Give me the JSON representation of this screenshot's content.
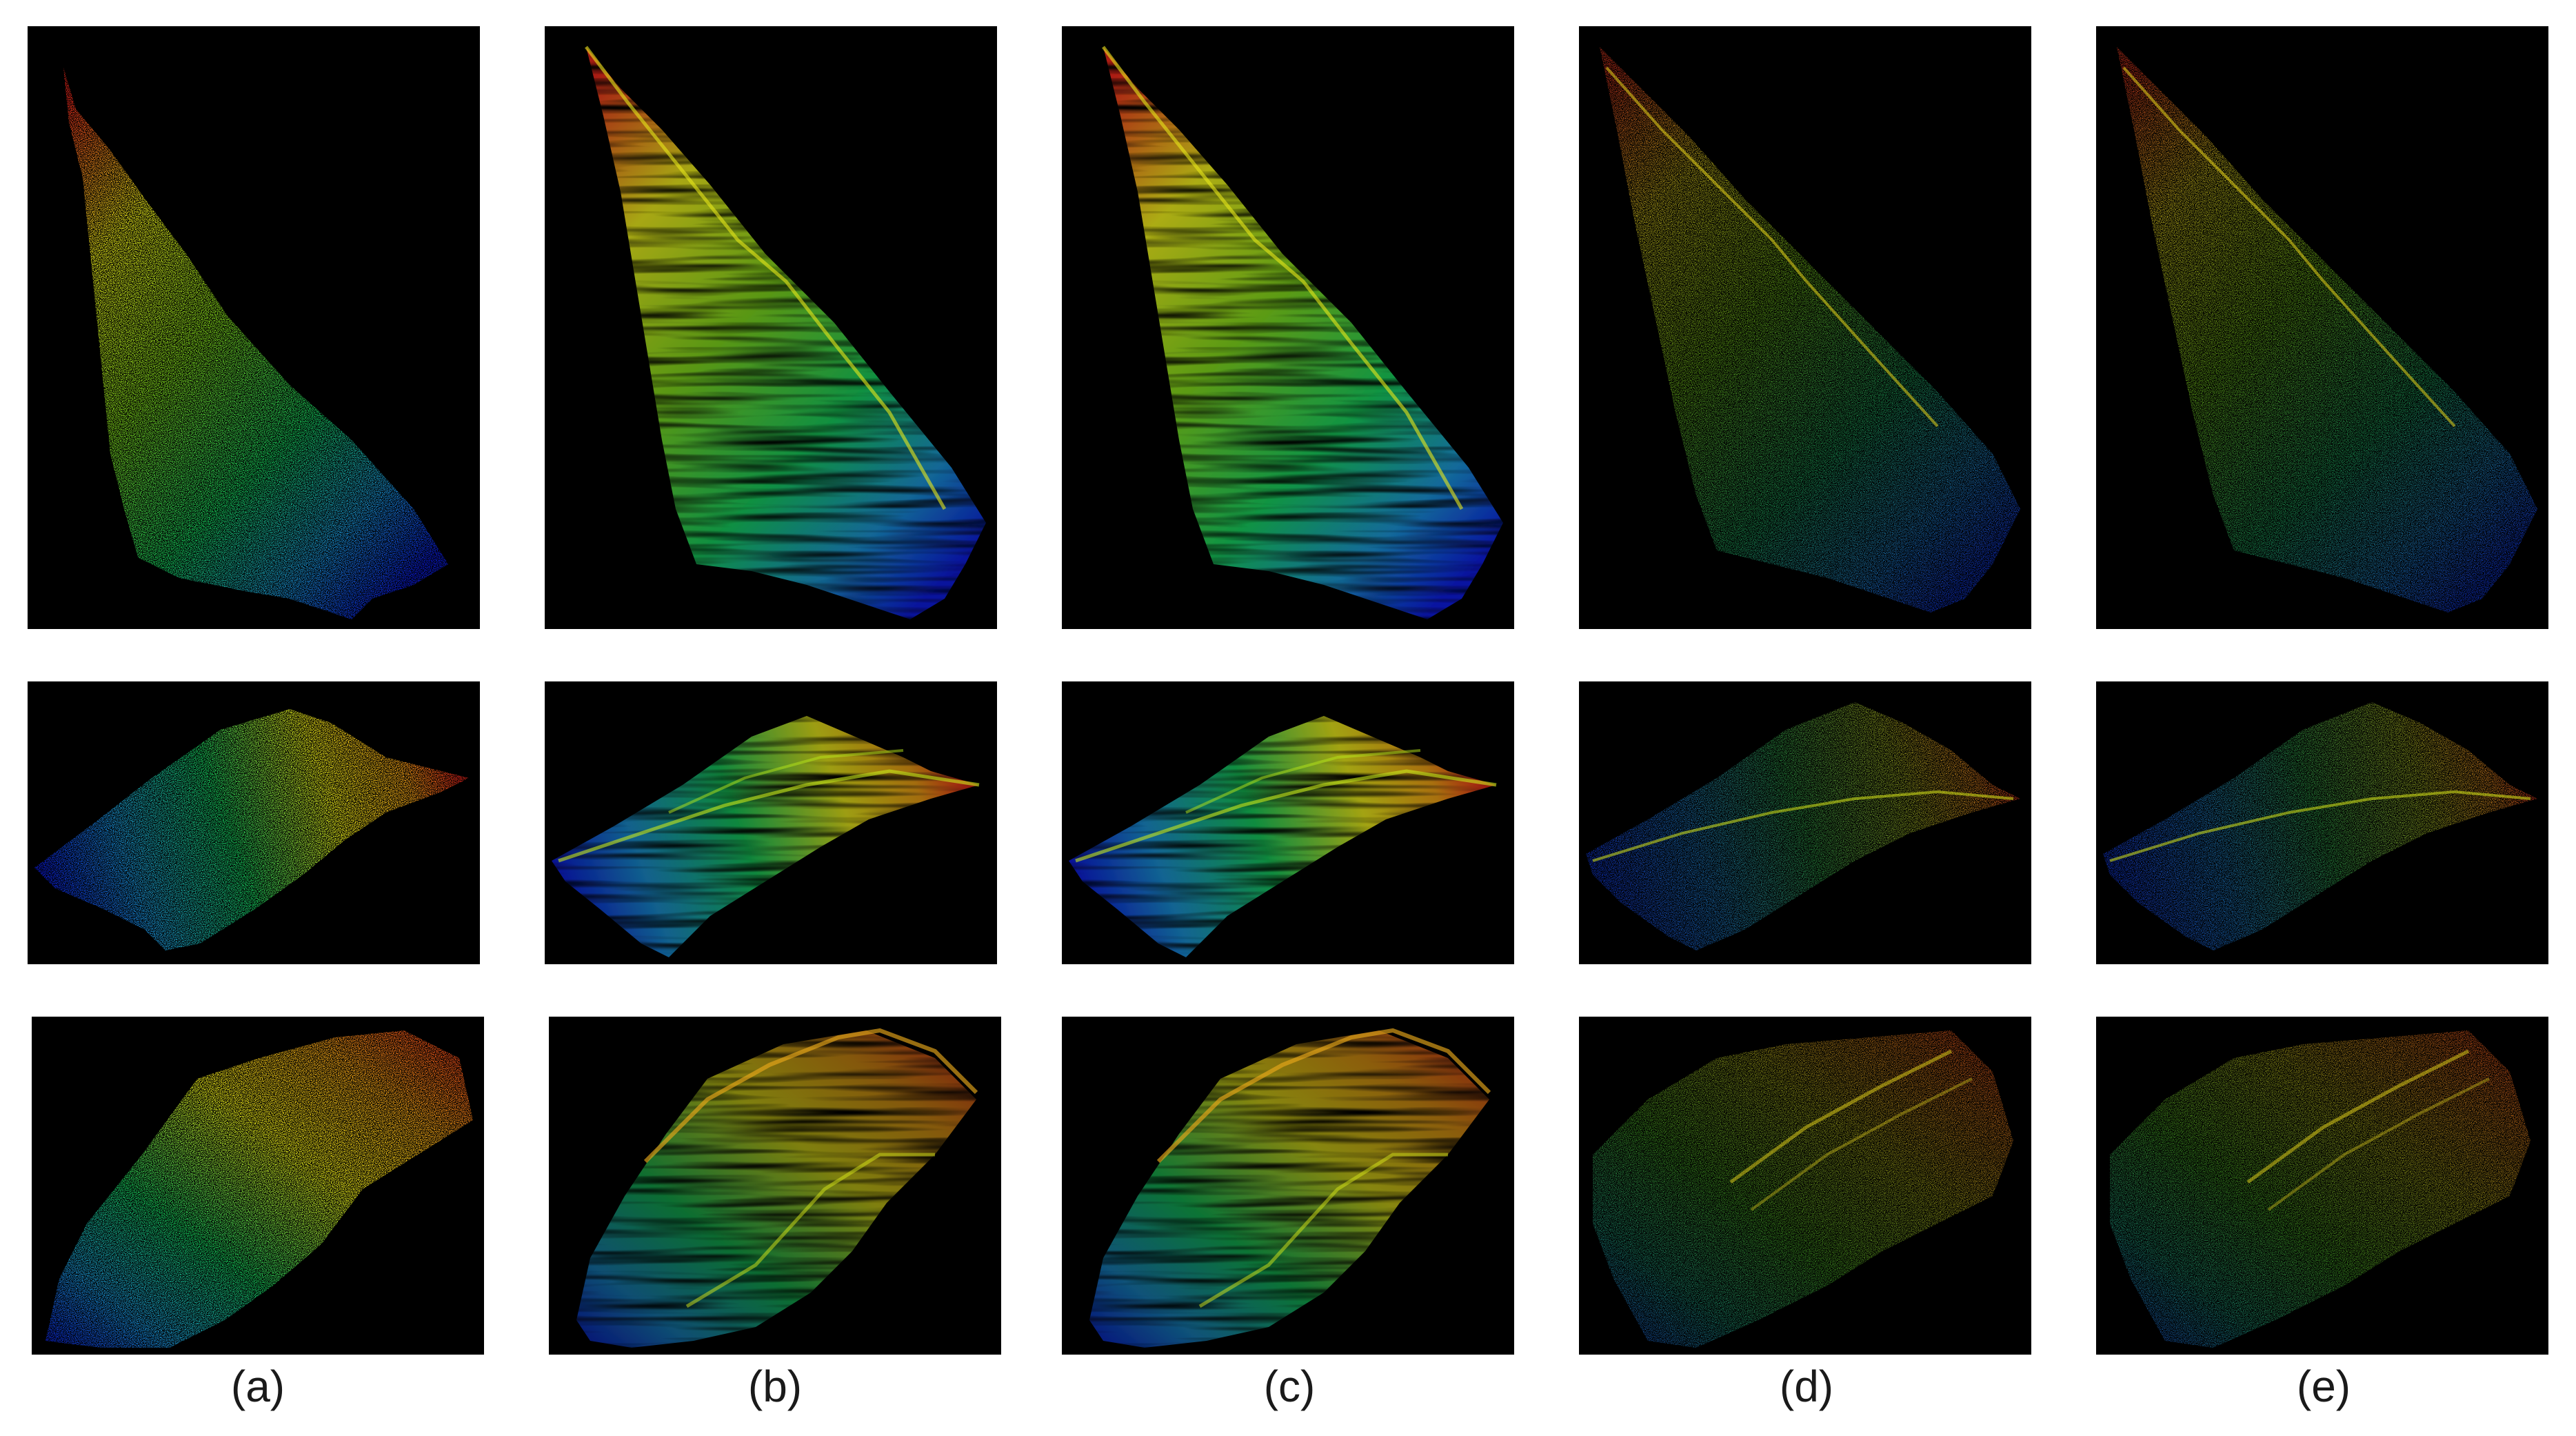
{
  "figure": {
    "captions": [
      "(a)",
      "(b)",
      "(c)",
      "(d)",
      "(e)"
    ],
    "colormap": [
      "#0a1ad8",
      "#1a8fd0",
      "#18c85a",
      "#7ed21c",
      "#e8e81a",
      "#f0a018",
      "#e8281a"
    ],
    "background": "#000000",
    "rows": 3,
    "columns": 5
  }
}
